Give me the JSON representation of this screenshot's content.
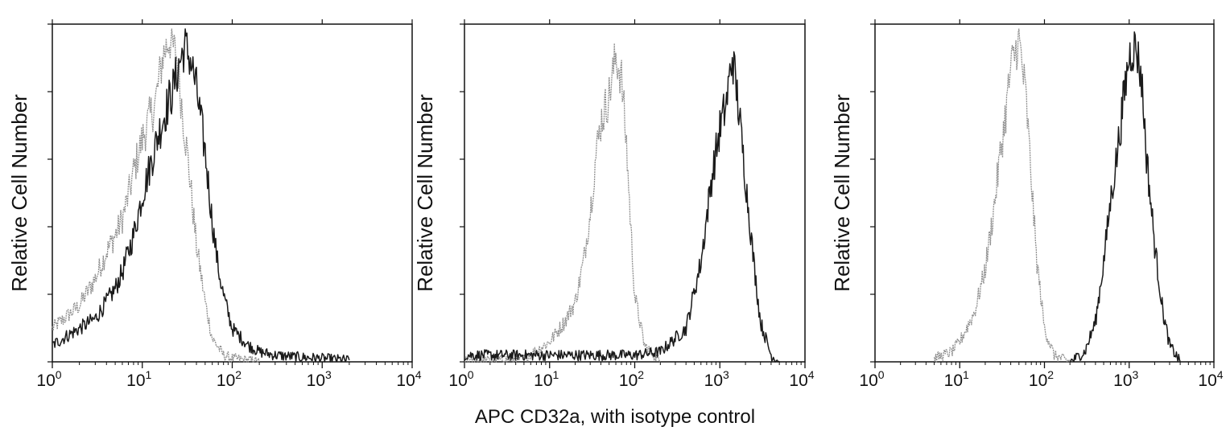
{
  "xlabel_shared": "APC CD32a, with isotype control",
  "colors": {
    "isotype": "#8f8f8f",
    "sample": "#1a1a1a",
    "axis": "#111111"
  },
  "chart_data": [
    {
      "type": "line",
      "title": "",
      "xlabel": "APC CD32a, with isotype control",
      "ylabel": "Relative Cell Number",
      "x_scale": "log",
      "xlim": [
        1,
        10000
      ],
      "ylim": [
        0,
        100
      ],
      "x_ticks": [
        1,
        10,
        100,
        1000,
        10000
      ],
      "x_tick_labels": [
        "10",
        "10",
        "10",
        "10",
        "10"
      ],
      "x_tick_exponents": [
        "0",
        "1",
        "2",
        "3",
        "4"
      ],
      "grid": false,
      "series": [
        {
          "color": "#8f8f8f",
          "x": [
            1,
            1.5,
            2,
            3,
            4,
            5,
            6,
            7,
            8,
            10,
            12,
            14,
            17,
            20,
            24,
            28,
            33,
            40,
            50,
            60,
            80,
            100,
            150,
            200
          ],
          "y": [
            10,
            14,
            17,
            25,
            33,
            38,
            43,
            50,
            57,
            67,
            73,
            78,
            92,
            97,
            92,
            75,
            58,
            35,
            18,
            7,
            2,
            1,
            0.5,
            0
          ]
        },
        {
          "color": "#1a1a1a",
          "x": [
            1,
            1.5,
            2,
            3,
            4,
            5,
            6,
            8,
            10,
            12,
            15,
            18,
            22,
            26,
            30,
            35,
            40,
            50,
            60,
            70,
            80,
            100,
            150,
            200,
            300,
            500,
            1000,
            2000
          ],
          "y": [
            5,
            8,
            10,
            13,
            18,
            22,
            27,
            38,
            50,
            58,
            68,
            75,
            82,
            90,
            95,
            90,
            82,
            63,
            42,
            28,
            20,
            10,
            5,
            3,
            2,
            1.5,
            1,
            0.5
          ]
        }
      ]
    },
    {
      "type": "line",
      "title": "",
      "xlabel": "APC CD32a, with isotype control",
      "ylabel": "Relative Cell Number",
      "x_scale": "log",
      "xlim": [
        1,
        10000
      ],
      "ylim": [
        0,
        100
      ],
      "x_ticks": [
        1,
        10,
        100,
        1000,
        10000
      ],
      "x_tick_labels": [
        "10",
        "10",
        "10",
        "10",
        "10"
      ],
      "x_tick_exponents": [
        "0",
        "1",
        "2",
        "3",
        "4"
      ],
      "grid": false,
      "series": [
        {
          "color": "#8f8f8f",
          "x": [
            1,
            5,
            10,
            15,
            20,
            25,
            30,
            35,
            40,
            50,
            60,
            70,
            80,
            90,
            100,
            130,
            200
          ],
          "y": [
            0,
            1,
            6,
            12,
            18,
            30,
            45,
            62,
            72,
            80,
            92,
            85,
            65,
            40,
            20,
            5,
            0
          ]
        },
        {
          "color": "#1a1a1a",
          "x": [
            1,
            10,
            100,
            200,
            400,
            600,
            800,
            1000,
            1200,
            1400,
            1600,
            2000,
            2500,
            3000,
            4000,
            5000
          ],
          "y": [
            2,
            2,
            2,
            3,
            10,
            30,
            55,
            70,
            78,
            92,
            80,
            55,
            30,
            12,
            2,
            0
          ]
        }
      ]
    },
    {
      "type": "line",
      "title": "",
      "xlabel": "APC CD32a, with isotype control",
      "ylabel": "Relative Cell Number",
      "x_scale": "log",
      "xlim": [
        1,
        10000
      ],
      "ylim": [
        0,
        100
      ],
      "x_ticks": [
        1,
        10,
        100,
        1000,
        10000
      ],
      "x_tick_labels": [
        "10",
        "10",
        "10",
        "10",
        "10"
      ],
      "x_tick_exponents": [
        "0",
        "1",
        "2",
        "3",
        "4"
      ],
      "grid": false,
      "series": [
        {
          "color": "#8f8f8f",
          "x": [
            5,
            8,
            10,
            15,
            20,
            25,
            30,
            35,
            40,
            50,
            60,
            70,
            80,
            100,
            130,
            200
          ],
          "y": [
            1,
            3,
            6,
            15,
            28,
            45,
            62,
            75,
            88,
            97,
            80,
            55,
            32,
            10,
            2,
            0
          ]
        },
        {
          "color": "#1a1a1a",
          "x": [
            200,
            300,
            400,
            500,
            600,
            700,
            800,
            900,
            1000,
            1200,
            1400,
            1600,
            2000,
            2500,
            3000,
            4000
          ],
          "y": [
            0,
            3,
            12,
            30,
            48,
            60,
            72,
            83,
            92,
            95,
            85,
            62,
            35,
            15,
            5,
            0
          ]
        }
      ]
    }
  ]
}
